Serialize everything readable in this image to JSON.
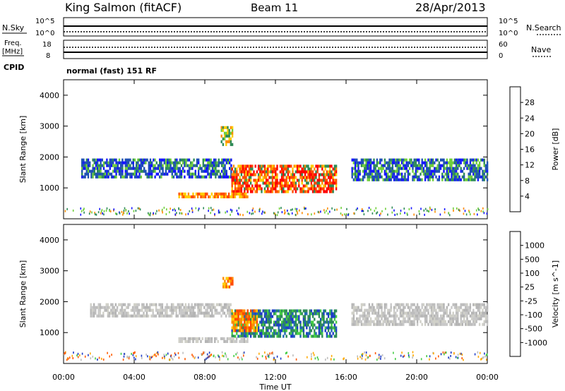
{
  "header": {
    "station": "King Salmon (fitACF)",
    "beam": "Beam 11",
    "date": "28/Apr/2013"
  },
  "strips": {
    "nsky_label": "N.Sky",
    "nsky_ticks": [
      "10^5",
      "10^0"
    ],
    "nsearch_label": "N.Search",
    "nsearch_ticks": [
      "10^5",
      "10^0"
    ],
    "freq_label_1": "Freq.",
    "freq_label_2": "[MHz]",
    "freq_ticks": [
      "18",
      "8"
    ],
    "nave_label": "Nave",
    "nave_ticks": [
      "60",
      "0"
    ],
    "cpid_label": "CPID",
    "cpid_text": "normal (fast) 151 RF"
  },
  "chart_data": [
    {
      "type": "heatmap",
      "name": "Power",
      "ylabel": "Slant Range [km]",
      "yticks": [
        "1000",
        "2000",
        "3000",
        "4000"
      ],
      "ylim": [
        0,
        4500
      ],
      "colorbar": {
        "label": "Power [dB]",
        "ticks": [
          "4",
          "8",
          "12",
          "16",
          "20",
          "24",
          "28"
        ],
        "colors": [
          "#1414ff",
          "#1e50b4",
          "#2e8b57",
          "#6fcf3a",
          "#ffcc00",
          "#ff8c00",
          "#ff4a00",
          "#ff0000"
        ]
      },
      "regions": [
        {
          "t0": 1.0,
          "t1": 9.5,
          "r0": 1350,
          "r1": 1950,
          "level": "blue-green"
        },
        {
          "t0": 9.5,
          "t1": 15.5,
          "r0": 850,
          "r1": 1750,
          "level": "red-orange"
        },
        {
          "t0": 16.3,
          "t1": 24.0,
          "r0": 1250,
          "r1": 1950,
          "level": "blue-green"
        },
        {
          "t0": 6.5,
          "t1": 10.5,
          "r0": 700,
          "r1": 850,
          "level": "orange"
        },
        {
          "t0": 8.9,
          "t1": 9.6,
          "r0": 2400,
          "r1": 3000,
          "level": "orange-green"
        }
      ]
    },
    {
      "type": "heatmap",
      "name": "Velocity",
      "ylabel": "Slant Range [km]",
      "yticks": [
        "1000",
        "2000",
        "3000",
        "4000"
      ],
      "ylim": [
        0,
        4500
      ],
      "colorbar": {
        "label": "Velocity [m s^-1]",
        "ticks": [
          "1000",
          "500",
          "100",
          "25",
          "-25",
          "-100",
          "-500",
          "-1000"
        ],
        "colors": [
          "#1e3cc8",
          "#1e64b4",
          "#2e8b57",
          "#44cc44",
          "#bdbdbd",
          "#c8c8b4",
          "#ffaa00",
          "#ff5a00",
          "#ff0000"
        ]
      },
      "regions": [
        {
          "t0": 1.5,
          "t1": 9.5,
          "r0": 1450,
          "r1": 1950,
          "level": "grey"
        },
        {
          "t0": 9.5,
          "t1": 15.5,
          "r0": 850,
          "r1": 1750,
          "level": "green-blue"
        },
        {
          "t0": 9.5,
          "t1": 11.0,
          "r0": 1000,
          "r1": 1750,
          "level": "orange"
        },
        {
          "t0": 16.3,
          "t1": 24.0,
          "r0": 1250,
          "r1": 1950,
          "level": "grey"
        },
        {
          "t0": 6.5,
          "t1": 10.5,
          "r0": 700,
          "r1": 850,
          "level": "grey"
        },
        {
          "t0": 9.0,
          "t1": 9.6,
          "r0": 2400,
          "r1": 2800,
          "level": "orange"
        }
      ]
    }
  ],
  "xaxis": {
    "label": "Time UT",
    "ticks": [
      "00:00",
      "04:00",
      "08:00",
      "12:00",
      "16:00",
      "20:00",
      "00:00"
    ],
    "xlim": [
      0,
      24
    ]
  }
}
